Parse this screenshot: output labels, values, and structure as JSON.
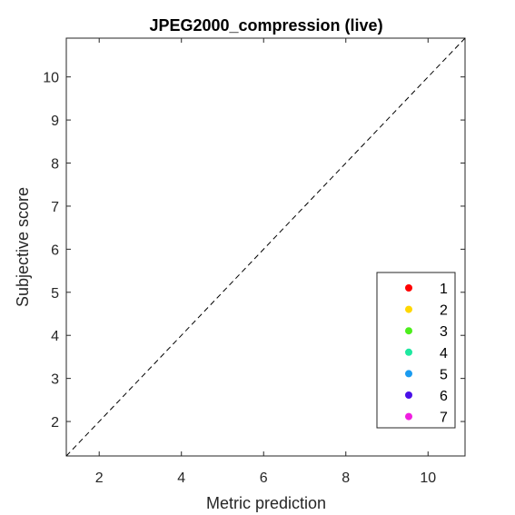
{
  "chart_data": {
    "type": "scatter",
    "title": "JPEG2000_compression (live)",
    "xlabel": "Metric prediction",
    "ylabel": "Subjective score",
    "xlim": [
      1.2,
      10.9
    ],
    "ylim": [
      1.2,
      10.9
    ],
    "xticks": [
      2,
      4,
      6,
      8,
      10
    ],
    "yticks": [
      2,
      3,
      4,
      5,
      6,
      7,
      8,
      9,
      10
    ],
    "grid": false,
    "reference_line": {
      "style": "dashed",
      "color": "#000000",
      "from": [
        1.2,
        1.2
      ],
      "to": [
        10.9,
        10.9
      ]
    },
    "legend": {
      "placement": "bottom-right",
      "entries": [
        {
          "label": "1",
          "color": "#ff0000"
        },
        {
          "label": "2",
          "color": "#ffd700"
        },
        {
          "label": "3",
          "color": "#4cee1c"
        },
        {
          "label": "4",
          "color": "#1ee8a0"
        },
        {
          "label": "5",
          "color": "#1a9bf0"
        },
        {
          "label": "6",
          "color": "#4a10e8"
        },
        {
          "label": "7",
          "color": "#f01ee0"
        }
      ]
    },
    "series": [
      {
        "name": "1",
        "color": "#ff0000",
        "points": []
      },
      {
        "name": "2",
        "color": "#ffd700",
        "points": []
      },
      {
        "name": "3",
        "color": "#4cee1c",
        "points": []
      },
      {
        "name": "4",
        "color": "#1ee8a0",
        "points": []
      },
      {
        "name": "5",
        "color": "#1a9bf0",
        "points": []
      },
      {
        "name": "6",
        "color": "#4a10e8",
        "points": []
      },
      {
        "name": "7",
        "color": "#f01ee0",
        "points": []
      }
    ]
  }
}
